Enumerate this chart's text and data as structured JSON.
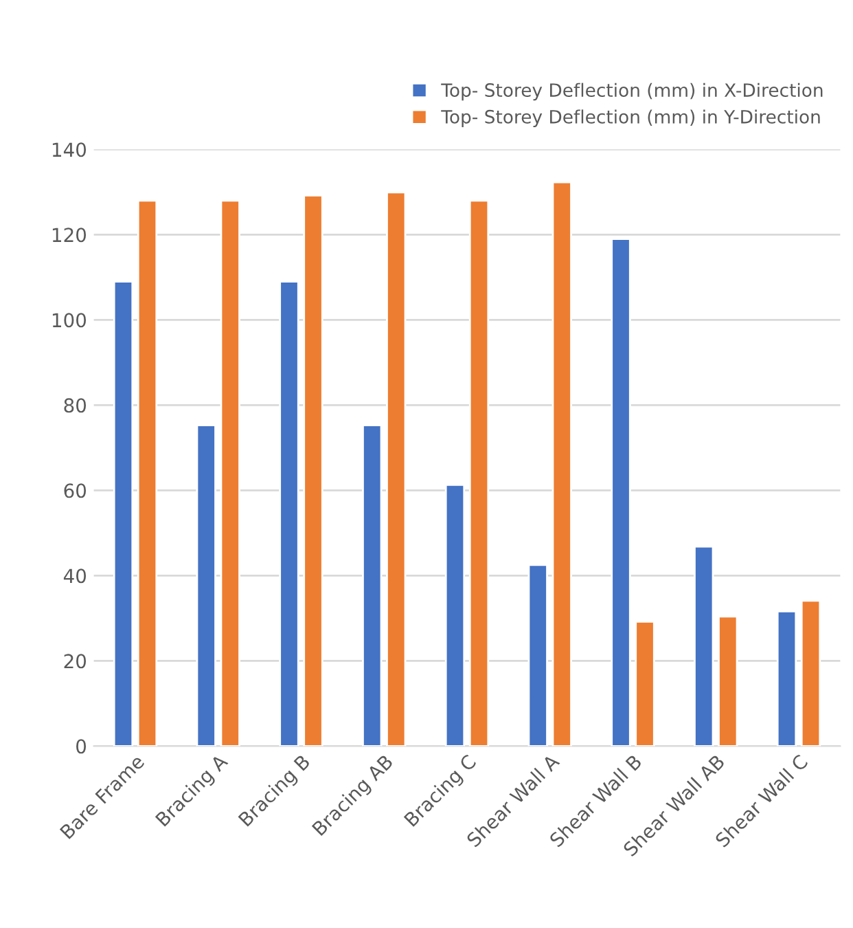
{
  "chart_data": {
    "type": "bar",
    "categories": [
      "Bare Frame",
      "Bracing A",
      "Bracing B",
      "Bracing AB",
      "Bracing C",
      "Shear Wall A",
      "Shear Wall B",
      "Shear Wall AB",
      "Shear Wall C"
    ],
    "series": [
      {
        "name": "Top- Storey Deflection (mm) in X-Direction",
        "color": "#4472c4",
        "values": [
          109,
          75.3,
          109,
          75.3,
          61.3,
          42.5,
          119,
          46.8,
          31.6
        ]
      },
      {
        "name": "Top- Storey Deflection (mm) in Y-Direction",
        "color": "#ed7d31",
        "values": [
          128,
          128,
          129.2,
          129.9,
          128,
          132.3,
          29.2,
          30.4,
          34.1
        ]
      }
    ],
    "ylim": [
      0,
      140
    ],
    "yticks": [
      0,
      20,
      40,
      60,
      80,
      100,
      120,
      140
    ],
    "grid": "y",
    "legend": "top right"
  }
}
